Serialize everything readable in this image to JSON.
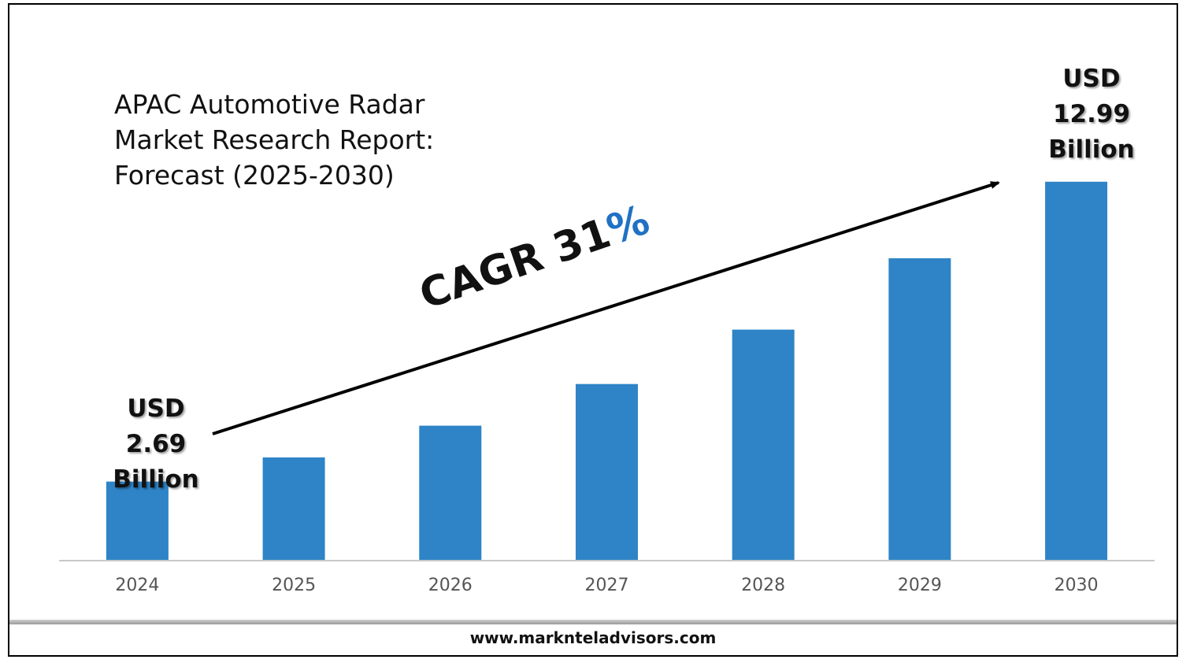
{
  "chart_data": {
    "type": "bar",
    "title": [
      "APAC Automotive Radar",
      "Market Research Report:",
      "Forecast (2025-2030)"
    ],
    "categories": [
      "2024",
      "2025",
      "2026",
      "2027",
      "2028",
      "2029",
      "2030"
    ],
    "values": [
      2.69,
      3.52,
      4.61,
      6.04,
      7.91,
      10.36,
      12.99
    ],
    "ylim": [
      0,
      14.5
    ],
    "unit": "USD Billion",
    "bar_color": "#2e84c6",
    "grid": false,
    "annotations": {
      "start": [
        "USD",
        "2.69",
        "Billion"
      ],
      "end": [
        "USD",
        "12.99",
        "Billion"
      ],
      "cagr_text": "CAGR 31",
      "cagr_symbol": "%",
      "cagr_color": "#1f72c4"
    }
  },
  "footer": {
    "website": "www.marknteladvisors.com"
  }
}
